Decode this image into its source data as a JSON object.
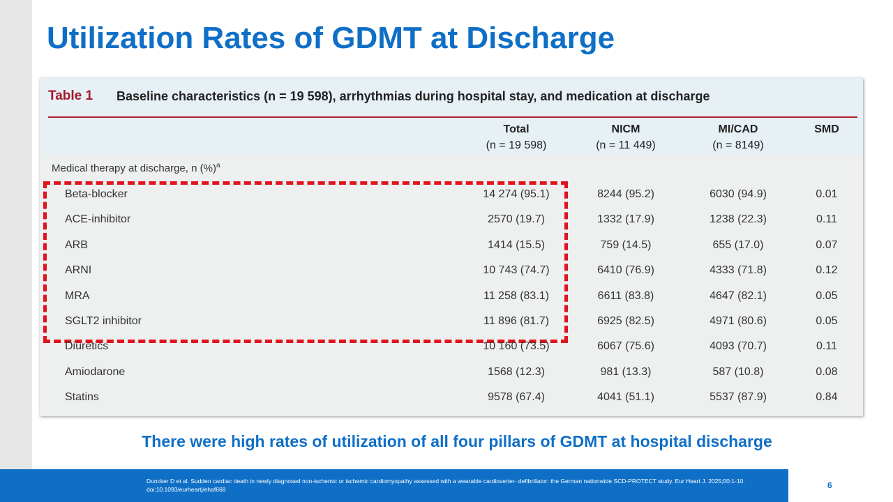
{
  "slide": {
    "title": "Utilization Rates of GDMT at Discharge",
    "conclusion": "There were high rates of utilization of all four pillars of GDMT at hospital discharge",
    "footnote": "Duncker D et al. Sudden cardiac death in newly diagnosed non-ischemic or ischemic cardiomyopathy assessed with a wearable cardioverter- defibrillator: the German nationwide SCD-PROTECT study. Eur Heart J. 2025;00:1-10. doi:10.1093/eurheartj/ehaf668",
    "page_number": "6"
  },
  "table": {
    "label": "Table 1",
    "caption": "Baseline characteristics (n = 19 598), arrhythmias during hospital stay, and medication at discharge",
    "columns": [
      {
        "name": "Total",
        "n": "(n = 19 598)"
      },
      {
        "name": "NICM",
        "n": "(n = 11 449)"
      },
      {
        "name": "MI/CAD",
        "n": "(n = 8149)"
      },
      {
        "name": "SMD"
      }
    ],
    "section": "Medical therapy at discharge, n (%)",
    "section_note": "a",
    "rows": [
      [
        "Beta-blocker",
        "14 274 (95.1)",
        "8244 (95.2)",
        "6030 (94.9)",
        "0.01"
      ],
      [
        "ACE-inhibitor",
        "2570 (19.7)",
        "1332 (17.9)",
        "1238 (22.3)",
        "0.11"
      ],
      [
        "ARB",
        "1414 (15.5)",
        "759 (14.5)",
        "655 (17.0)",
        "0.07"
      ],
      [
        "ARNI",
        "10 743 (74.7)",
        "6410 (76.9)",
        "4333 (71.8)",
        "0.12"
      ],
      [
        "MRA",
        "11 258 (83.1)",
        "6611 (83.8)",
        "4647 (82.1)",
        "0.05"
      ],
      [
        "SGLT2 inhibitor",
        "11 896 (81.7)",
        "6925 (82.5)",
        "4971 (80.6)",
        "0.05"
      ],
      [
        "Diuretics",
        "10 160 (73.5)",
        "6067 (75.6)",
        "4093 (70.7)",
        "0.11"
      ],
      [
        "Amiodarone",
        "1568 (12.3)",
        "981 (13.3)",
        "587 (10.8)",
        "0.08"
      ],
      [
        "Statins",
        "9578 (67.4)",
        "4041 (51.1)",
        "5537 (87.9)",
        "0.84"
      ]
    ]
  }
}
